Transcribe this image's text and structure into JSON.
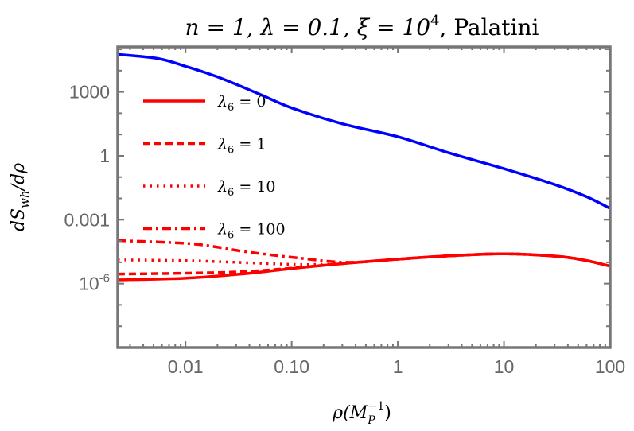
{
  "chart_data": {
    "type": "line",
    "title_parts": [
      "n = 1,  λ = 0.1,  ξ = 10",
      "4",
      ",  Palatini"
    ],
    "xlabel_parts": [
      "ρ(M",
      "P",
      "−1",
      ")"
    ],
    "ylabel_parts": [
      "dS",
      "wh",
      "/dρ"
    ],
    "x_scale": "log",
    "y_scale": "log",
    "xlim": [
      0.0023,
      100
    ],
    "ylim": [
      1e-09,
      130000.0
    ],
    "x_ticks": [
      {
        "value": 0.01,
        "label": "0.01"
      },
      {
        "value": 0.1,
        "label": "0.10"
      },
      {
        "value": 1,
        "label": "1"
      },
      {
        "value": 10,
        "label": "10"
      },
      {
        "value": 100,
        "label": "100"
      }
    ],
    "y_ticks": [
      {
        "value": 1000,
        "label": "1000"
      },
      {
        "value": 1,
        "label": "1"
      },
      {
        "value": 0.001,
        "label": "0.001"
      },
      {
        "value": 1e-06,
        "label": "10",
        "exp": "-6"
      }
    ],
    "grid": false,
    "legend_position": "left",
    "series": [
      {
        "legend": null,
        "color": "#0000ff",
        "dash": "solid",
        "x": [
          0.0023,
          0.0055,
          0.01,
          0.02,
          0.05,
          0.1,
          0.3,
          1,
          3,
          10,
          30,
          60,
          100
        ],
        "y": [
          58000,
          37000,
          16000,
          5100,
          780,
          178,
          32,
          7.9,
          1.4,
          0.25,
          0.045,
          0.012,
          0.0034
        ]
      },
      {
        "legend": {
          "sym": "λ",
          "sub": "6",
          "rest": " = 0"
        },
        "color": "#ff0000",
        "dash": "solid",
        "x": [
          0.0023,
          0.01,
          0.033,
          0.1,
          0.3,
          1,
          3,
          10,
          32,
          60,
          100
        ],
        "y": [
          1.5e-06,
          1.8e-06,
          2.8e-06,
          5.1e-06,
          8.7e-06,
          1.4e-05,
          2e-05,
          2.5e-05,
          1.9e-05,
          1.2e-05,
          6.6e-06
        ]
      },
      {
        "legend": {
          "sym": "λ",
          "sub": "6",
          "rest": " = 1"
        },
        "color": "#ff0000",
        "dash": "dashed",
        "x": [
          0.0023,
          0.01,
          0.033,
          0.1,
          0.3,
          1,
          3,
          10,
          32,
          60,
          100
        ],
        "y": [
          2.8e-06,
          3.1e-06,
          3.6e-06,
          5.3e-06,
          8.7e-06,
          1.4e-05,
          2e-05,
          2.5e-05,
          1.9e-05,
          1.2e-05,
          6.6e-06
        ]
      },
      {
        "legend": {
          "sym": "λ",
          "sub": "6",
          "rest": " = 10"
        },
        "color": "#ff0000",
        "dash": "dotted",
        "x": [
          0.0023,
          0.01,
          0.03,
          0.1,
          0.2,
          0.3,
          1,
          3,
          10,
          32,
          60,
          100
        ],
        "y": [
          1.3e-05,
          1.2e-05,
          1e-05,
          8e-06,
          8e-06,
          8.8e-06,
          1.4e-05,
          2e-05,
          2.5e-05,
          1.9e-05,
          1.2e-05,
          6.6e-06
        ]
      },
      {
        "legend": {
          "sym": "λ",
          "sub": "6",
          "rest": " = 100"
        },
        "color": "#ff0000",
        "dash": "dashdot",
        "x": [
          0.0023,
          0.0115,
          0.036,
          0.115,
          0.33,
          1,
          3,
          10,
          32,
          60,
          100
        ],
        "y": [
          0.000105,
          7.4e-05,
          3.2e-05,
          1.6e-05,
          1e-05,
          1.4e-05,
          2e-05,
          2.5e-05,
          1.9e-05,
          1.2e-05,
          6.6e-06
        ]
      }
    ]
  }
}
